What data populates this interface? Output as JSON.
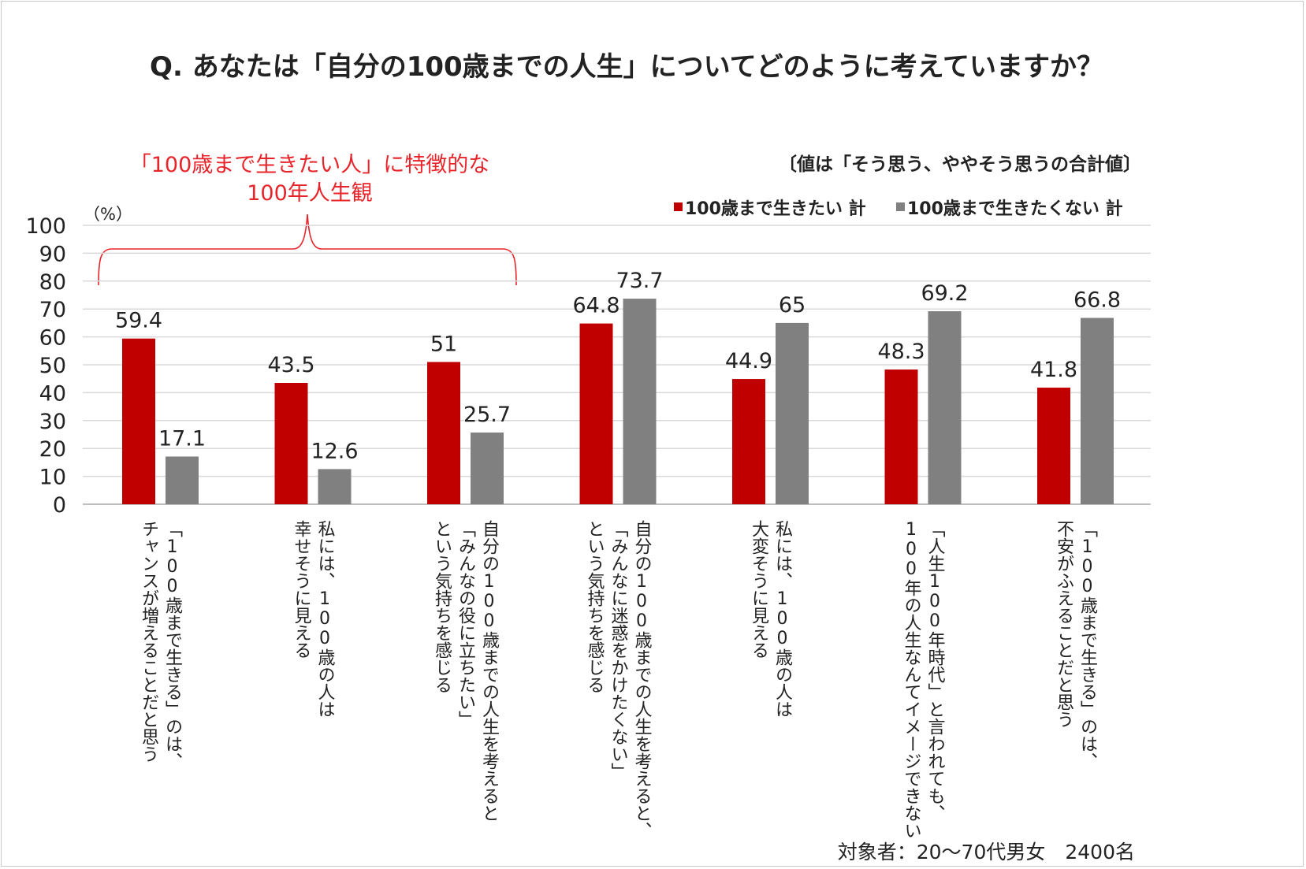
{
  "chart_data": {
    "type": "bar",
    "title": "Q.  あなたは「自分の100歳までの人生」についてどのように考えていますか？",
    "note": "〔値は「そう思う、ややそう思うの合計値〕",
    "unit_label": "（%）",
    "highlight_line1": "「100歳まで生きたい人」に特徴的な",
    "highlight_line2": "100年人生観",
    "footnote": "対象者：20～70代男女　2400名",
    "ylim": [
      0,
      100
    ],
    "yticks": [
      0,
      10,
      20,
      30,
      40,
      50,
      60,
      70,
      80,
      90,
      100
    ],
    "grid": true,
    "legend_position": "top-right",
    "categories": [
      "「100歳まで生きる」のは、|チャンスが増えることだと思う",
      "私には、100歳の人は|幸せそうに見える",
      "自分の100歳までの人生を考えると|「みんなの役に立ちたい」|という気持ちを感じる",
      "自分の100歳までの人生を考えると、|「みんなに迷惑をかけたくない」|という気持ちを感じる",
      "私には、100歳の人は|大変そうに見える",
      "「人生100年時代」と言われても、|100年の人生なんてイメージできない",
      "「100歳まで生きる」のは、|不安がふえることだと思う"
    ],
    "series": [
      {
        "name": "100歳まで生きたい 計",
        "color": "#c00000",
        "values": [
          59.4,
          43.5,
          51,
          64.8,
          44.9,
          48.3,
          41.8
        ]
      },
      {
        "name": "100歳まで生きたくない 計",
        "color": "#808080",
        "values": [
          17.1,
          12.6,
          25.7,
          73.7,
          65,
          69.2,
          66.8
        ]
      }
    ],
    "colors": {
      "accent": "#e8242b",
      "grid": "#d9d9d9",
      "axis": "#bfbfbf"
    }
  }
}
